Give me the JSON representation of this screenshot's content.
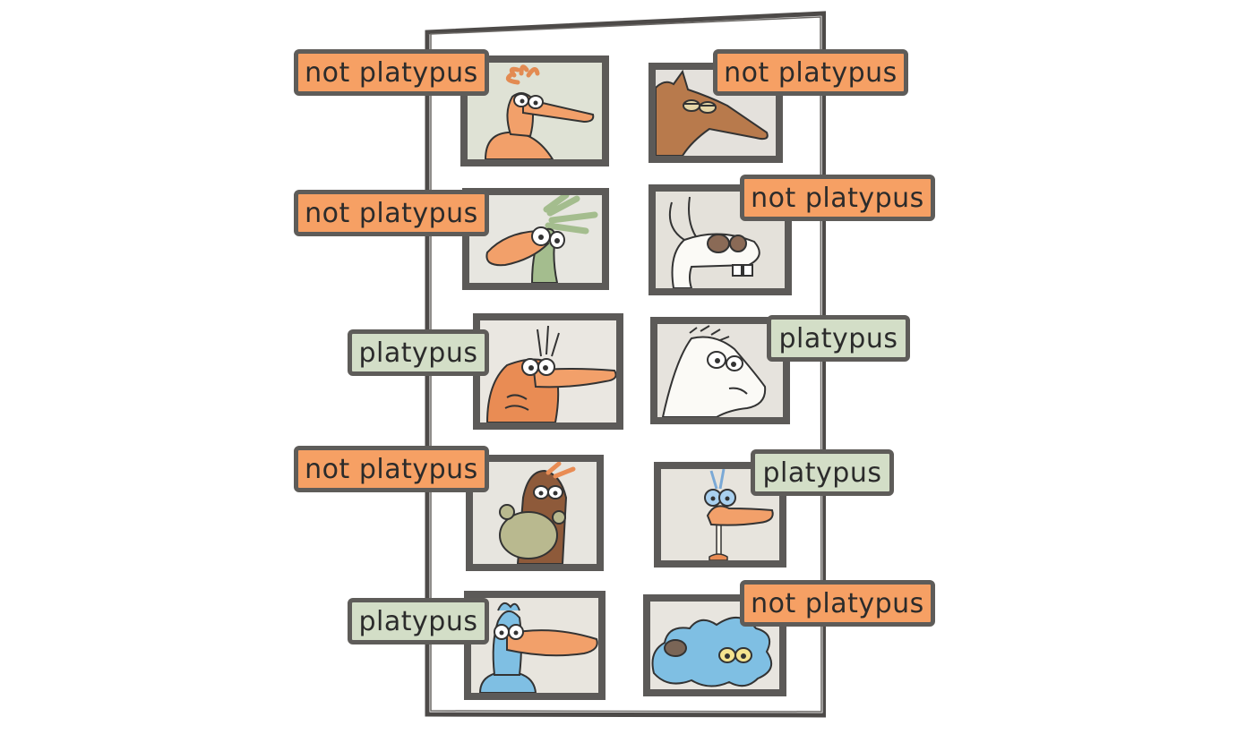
{
  "colors": {
    "not_platypus_tag": "#f6a064",
    "platypus_tag": "#d3dec7",
    "frame": "#4d4a48",
    "card_border": "#5c5a58"
  },
  "cards": [
    {
      "label": "not platypus",
      "class": "not-platypus",
      "icon": "orange-crested-bird"
    },
    {
      "label": "not platypus",
      "class": "not-platypus",
      "icon": "brown-anteater"
    },
    {
      "label": "not platypus",
      "class": "not-platypus",
      "icon": "green-crested-bird"
    },
    {
      "label": "not platypus",
      "class": "not-platypus",
      "icon": "white-rabbit"
    },
    {
      "label": "platypus",
      "class": "platypus",
      "icon": "orange-platypus"
    },
    {
      "label": "platypus",
      "class": "platypus",
      "icon": "white-horse"
    },
    {
      "label": "not platypus",
      "class": "not-platypus",
      "icon": "brown-moose"
    },
    {
      "label": "platypus",
      "class": "platypus",
      "icon": "blue-eyed-duck-on-stick"
    },
    {
      "label": "platypus",
      "class": "platypus",
      "icon": "blue-duck"
    },
    {
      "label": "not platypus",
      "class": "not-platypus",
      "icon": "blue-blob-creature"
    }
  ]
}
